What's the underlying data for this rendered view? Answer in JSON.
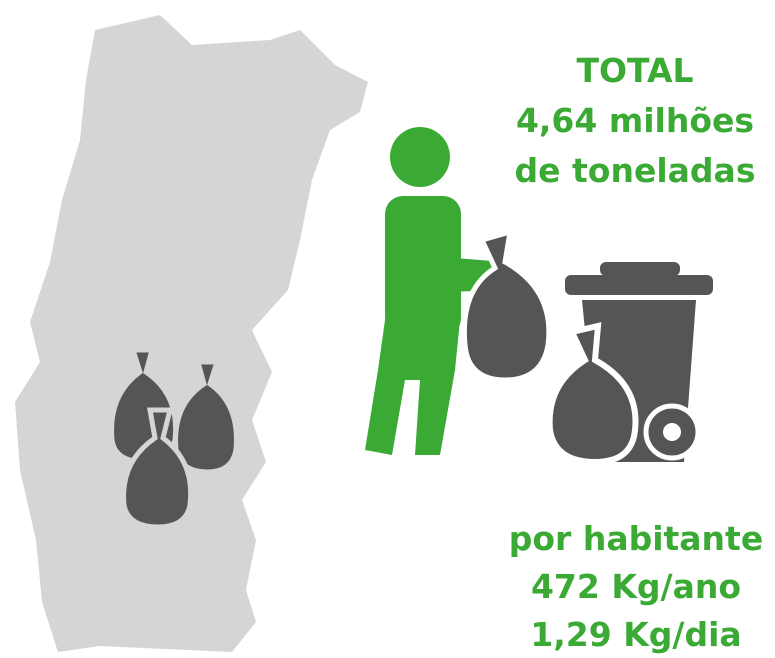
{
  "total": {
    "title": "TOTAL",
    "lines": [
      "4,64 milhões",
      "de toneladas"
    ]
  },
  "per_capita": {
    "title": "por habitante",
    "lines": [
      "472 Kg/ano",
      "1,29 Kg/dia"
    ]
  }
}
